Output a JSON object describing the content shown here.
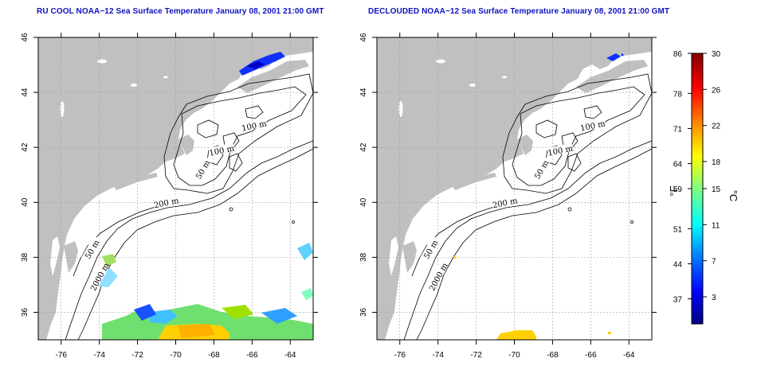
{
  "titles": {
    "left": "RU COOL NOAA−12 Sea Surface Temperature January 08, 2001 21:00 GMT",
    "right": "DECLOUDED NOAA−12 Sea Surface Temperature January 08, 2001 21:00 GMT"
  },
  "axes": {
    "lon_ticks": [
      "-76",
      "-74",
      "-72",
      "-70",
      "-68",
      "-66",
      "-64"
    ],
    "lat_ticks": [
      "36",
      "38",
      "40",
      "42",
      "44",
      "46"
    ],
    "lon_range": [
      -77.2,
      -62.8
    ],
    "lat_range": [
      35.0,
      46.0
    ]
  },
  "contour_labels": [
    {
      "text": "100 m",
      "lon": -65.9,
      "lat": 42.8
    },
    {
      "text": "100 m",
      "lon": -67.6,
      "lat": 41.9
    },
    {
      "text": "50 m",
      "lon": -68.6,
      "lat": 41.2
    },
    {
      "text": "200 m",
      "lon": -70.5,
      "lat": 40.0
    },
    {
      "text": "50 m",
      "lon": -74.4,
      "lat": 38.3
    },
    {
      "text": "2000 m",
      "lon": -74.0,
      "lat": 37.3
    }
  ],
  "colorbar": {
    "fahrenheit_unit": "°F",
    "celsius_unit": "°C",
    "fahrenheit_ticks": [
      "86",
      "78",
      "71",
      "64",
      "59",
      "51",
      "44",
      "37"
    ],
    "celsius_ticks": [
      "30",
      "26",
      "22",
      "18",
      "15",
      "11",
      "7",
      "3"
    ],
    "celsius_range": [
      0,
      30
    ]
  },
  "colors": {
    "land": "#c0c0c0",
    "ocean": "#ffffff",
    "title": "#1010c0",
    "grid": "#a0a0a0"
  }
}
